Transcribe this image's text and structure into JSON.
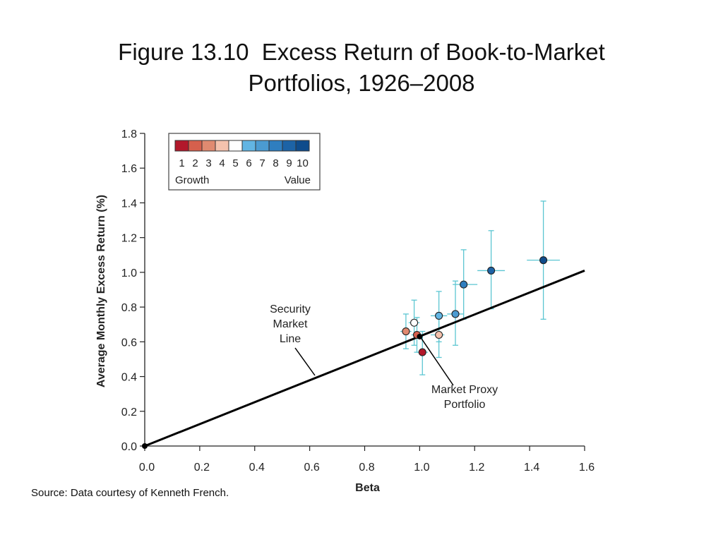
{
  "slide": {
    "title_line1": "Figure 13.10  Excess Return of Book-to-Market",
    "title_line2": "Portfolios, 1926–2008",
    "source": "Source: Data courtesy of Kenneth French."
  },
  "legend": {
    "numbers": [
      "1",
      "2",
      "3",
      "4",
      "5",
      "6",
      "7",
      "8",
      "9",
      "10"
    ],
    "colors": [
      "#b2182b",
      "#d6604d",
      "#e08a70",
      "#f4c2ad",
      "#ffffff",
      "#62b5e3",
      "#4b9bd1",
      "#2f7ebf",
      "#1d63a6",
      "#0f4c8c"
    ],
    "growth_label": "Growth",
    "value_label": "Value"
  },
  "annotations": {
    "sml_lines": [
      "Security",
      "Market",
      "Line"
    ],
    "proxy_lines": [
      "Market Proxy",
      "Portfolio"
    ]
  },
  "chart_data": {
    "type": "scatter",
    "xlabel": "Beta",
    "ylabel": "Average Monthly Excess Return (%)",
    "xlim": [
      0,
      1.6
    ],
    "ylim": [
      0,
      1.8
    ],
    "x_ticks": [
      0.0,
      0.2,
      0.4,
      0.6,
      0.8,
      1.0,
      1.2,
      1.4,
      1.6
    ],
    "y_ticks": [
      0.0,
      0.2,
      0.4,
      0.6,
      0.8,
      1.0,
      1.2,
      1.4,
      1.6,
      1.8
    ],
    "x_tick_labels": [
      "0.0",
      "0.2",
      "0.4",
      "0.6",
      "0.8",
      "1.0",
      "1.2",
      "1.4",
      "1.6"
    ],
    "y_tick_labels": [
      "0.0",
      "0.2",
      "0.4",
      "0.6",
      "0.8",
      "1.0",
      "1.2",
      "1.4",
      "1.6",
      "1.8"
    ],
    "security_market_line": {
      "x": [
        0.0,
        1.6
      ],
      "y": [
        0.0,
        1.01
      ]
    },
    "market_proxy": {
      "x": 1.0,
      "y": 0.63
    },
    "portfolios": [
      {
        "portfolio": 1,
        "beta": 1.01,
        "ret": 0.54,
        "y_err": [
          0.41,
          0.66
        ],
        "x_err": [
          0.99,
          1.03
        ]
      },
      {
        "portfolio": 2,
        "beta": 0.99,
        "ret": 0.64,
        "y_err": [
          0.54,
          0.74
        ],
        "x_err": [
          0.97,
          1.01
        ]
      },
      {
        "portfolio": 3,
        "beta": 0.95,
        "ret": 0.66,
        "y_err": [
          0.56,
          0.76
        ],
        "x_err": [
          0.93,
          0.97
        ]
      },
      {
        "portfolio": 4,
        "beta": 1.07,
        "ret": 0.64,
        "y_err": [
          0.51,
          0.76
        ],
        "x_err": [
          1.04,
          1.09
        ]
      },
      {
        "portfolio": 5,
        "beta": 0.98,
        "ret": 0.71,
        "y_err": [
          0.58,
          0.84
        ],
        "x_err": [
          0.96,
          1.0
        ]
      },
      {
        "portfolio": 6,
        "beta": 1.07,
        "ret": 0.75,
        "y_err": [
          0.6,
          0.89
        ],
        "x_err": [
          1.04,
          1.1
        ]
      },
      {
        "portfolio": 7,
        "beta": 1.13,
        "ret": 0.76,
        "y_err": [
          0.58,
          0.95
        ],
        "x_err": [
          1.1,
          1.16
        ]
      },
      {
        "portfolio": 8,
        "beta": 1.16,
        "ret": 0.93,
        "y_err": [
          0.73,
          1.13
        ],
        "x_err": [
          1.12,
          1.21
        ]
      },
      {
        "portfolio": 9,
        "beta": 1.26,
        "ret": 1.01,
        "y_err": [
          0.79,
          1.24
        ],
        "x_err": [
          1.21,
          1.31
        ]
      },
      {
        "portfolio": 10,
        "beta": 1.45,
        "ret": 1.07,
        "y_err": [
          0.73,
          1.41
        ],
        "x_err": [
          1.39,
          1.51
        ]
      }
    ],
    "grid": false,
    "legend_position": "top-left"
  }
}
